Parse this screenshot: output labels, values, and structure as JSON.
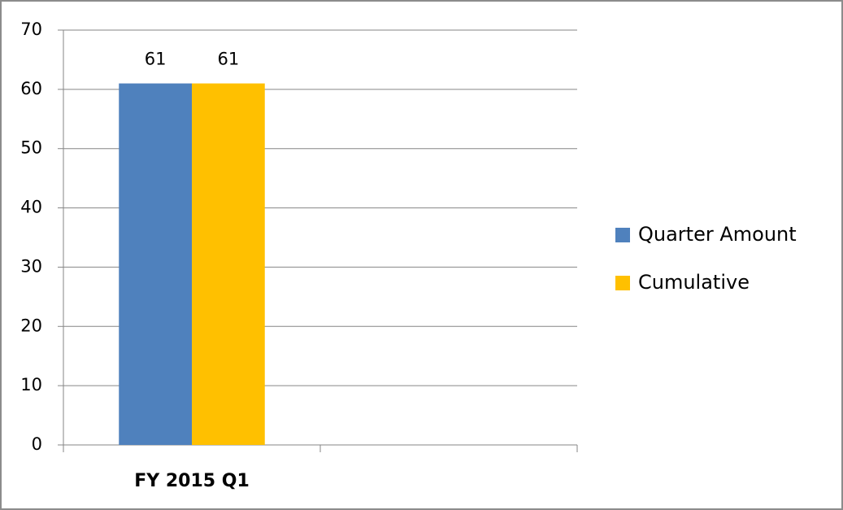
{
  "chart_data": {
    "type": "bar",
    "categories": [
      "FY 2015 Q1",
      null
    ],
    "series": [
      {
        "name": "Quarter Amount",
        "color": "#4f81bd",
        "values": [
          61,
          null
        ]
      },
      {
        "name": "Cumulative",
        "color": "#ffc000",
        "values": [
          61,
          null
        ]
      }
    ],
    "ylim": [
      0,
      70
    ],
    "yticks": [
      0,
      10,
      20,
      30,
      40,
      50,
      60,
      70
    ],
    "grid": true,
    "legend": "right",
    "data_labels": true
  }
}
